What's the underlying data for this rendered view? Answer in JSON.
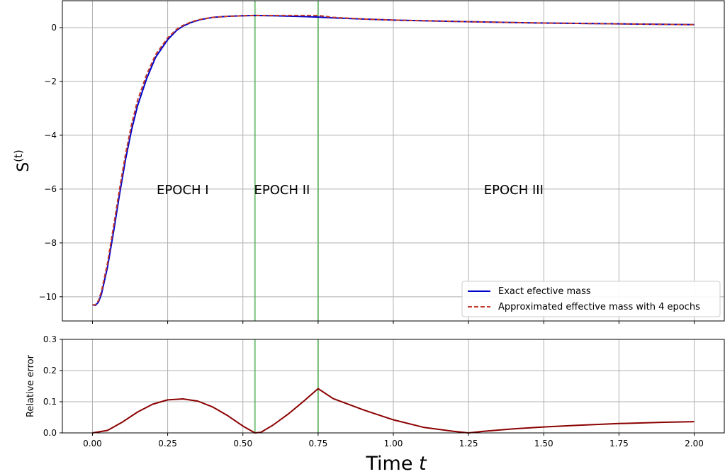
{
  "chart_data": [
    {
      "type": "line",
      "ylabel": "S^(t)",
      "xlim": [
        -0.1,
        2.1
      ],
      "ylim": [
        -10.9,
        1.0
      ],
      "xticks": [
        "0.00",
        "0.25",
        "0.50",
        "0.75",
        "1.00",
        "1.25",
        "1.50",
        "1.75",
        "2.00"
      ],
      "yticks": [
        "0",
        "−2",
        "−4",
        "−6",
        "−8",
        "−10"
      ],
      "grid": true,
      "legend_position": "bottom-right",
      "vlines": [
        0.54,
        0.75
      ],
      "annotations": [
        {
          "text": "EPOCH I",
          "x": 0.3,
          "y": -6.0
        },
        {
          "text": "EPOCH II",
          "x": 0.63,
          "y": -6.0
        },
        {
          "text": "EPOCH III",
          "x": 1.4,
          "y": -6.0
        }
      ],
      "series": [
        {
          "name": "Exact efective mass",
          "color": "#0000cc",
          "style": "solid",
          "x": [
            0.0,
            0.01,
            0.02,
            0.03,
            0.05,
            0.07,
            0.09,
            0.11,
            0.13,
            0.15,
            0.18,
            0.21,
            0.25,
            0.28,
            0.3,
            0.33,
            0.36,
            0.4,
            0.45,
            0.5,
            0.54,
            0.6,
            0.7,
            0.75,
            0.8,
            0.9,
            1.0,
            1.25,
            1.5,
            1.75,
            2.0
          ],
          "y": [
            -10.3,
            -10.32,
            -10.2,
            -9.9,
            -8.9,
            -7.6,
            -6.2,
            -4.9,
            -3.8,
            -2.9,
            -1.9,
            -1.1,
            -0.45,
            -0.1,
            0.05,
            0.2,
            0.3,
            0.38,
            0.42,
            0.44,
            0.45,
            0.44,
            0.41,
            0.39,
            0.36,
            0.32,
            0.28,
            0.22,
            0.17,
            0.14,
            0.11
          ]
        },
        {
          "name": "Approximated effective mass with 4 epochs",
          "color": "#c0392b",
          "style": "dashed",
          "x": [
            0.0,
            0.01,
            0.02,
            0.03,
            0.05,
            0.07,
            0.09,
            0.11,
            0.13,
            0.15,
            0.18,
            0.21,
            0.25,
            0.28,
            0.3,
            0.33,
            0.36,
            0.4,
            0.45,
            0.5,
            0.54,
            0.6,
            0.7,
            0.75,
            0.8,
            0.9,
            1.0,
            1.25,
            1.5,
            1.75,
            2.0
          ],
          "y": [
            -10.3,
            -10.3,
            -10.15,
            -9.8,
            -8.75,
            -7.4,
            -6.0,
            -4.7,
            -3.6,
            -2.7,
            -1.75,
            -1.0,
            -0.38,
            -0.06,
            0.08,
            0.22,
            0.31,
            0.38,
            0.42,
            0.44,
            0.45,
            0.45,
            0.45,
            0.45,
            0.38,
            0.32,
            0.28,
            0.22,
            0.17,
            0.14,
            0.11
          ]
        }
      ]
    },
    {
      "type": "line",
      "xlabel": "Time t",
      "ylabel": "Relative error",
      "xlim": [
        -0.1,
        2.1
      ],
      "ylim": [
        0.0,
        0.3
      ],
      "xticks": [
        "0.00",
        "0.25",
        "0.50",
        "0.75",
        "1.00",
        "1.25",
        "1.50",
        "1.75",
        "2.00"
      ],
      "yticks": [
        "0.0",
        "0.1",
        "0.2",
        "0.3"
      ],
      "grid": true,
      "vlines": [
        0.54,
        0.75
      ],
      "series": [
        {
          "color": "#8b0000",
          "style": "solid",
          "x": [
            0.0,
            0.05,
            0.1,
            0.15,
            0.2,
            0.25,
            0.3,
            0.35,
            0.4,
            0.45,
            0.5,
            0.54,
            0.56,
            0.6,
            0.65,
            0.7,
            0.75,
            0.8,
            0.9,
            1.0,
            1.1,
            1.2,
            1.25,
            1.3,
            1.4,
            1.5,
            1.6,
            1.75,
            1.9,
            2.0
          ],
          "y": [
            0.0,
            0.008,
            0.035,
            0.067,
            0.092,
            0.106,
            0.109,
            0.102,
            0.083,
            0.055,
            0.022,
            0.0,
            0.002,
            0.025,
            0.06,
            0.1,
            0.142,
            0.11,
            0.074,
            0.042,
            0.018,
            0.005,
            0.0,
            0.005,
            0.013,
            0.019,
            0.024,
            0.03,
            0.034,
            0.036
          ]
        }
      ]
    }
  ]
}
